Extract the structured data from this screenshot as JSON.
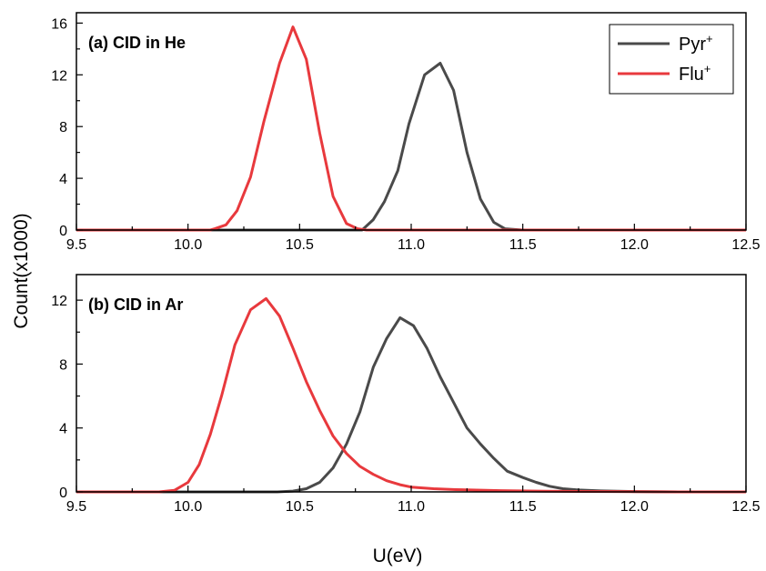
{
  "chart_data": [
    {
      "type": "line",
      "panel_label": "(a) CID in He",
      "xlim": [
        9.5,
        12.5
      ],
      "ylim": [
        0,
        16.8
      ],
      "x_ticks": [
        "9.5",
        "10.0",
        "10.5",
        "11.0",
        "11.5",
        "12.0",
        "12.5"
      ],
      "y_ticks": [
        "0",
        "4",
        "8",
        "12",
        "16"
      ],
      "legend_position": "top-right",
      "series": [
        {
          "name": "Pyr",
          "name_superscript": "+",
          "color": "#4a4a4a",
          "points": [
            [
              9.5,
              0
            ],
            [
              10.7,
              0
            ],
            [
              10.78,
              0
            ],
            [
              10.83,
              0.8
            ],
            [
              10.88,
              2.2
            ],
            [
              10.94,
              4.6
            ],
            [
              10.99,
              8.2
            ],
            [
              11.06,
              12.0
            ],
            [
              11.13,
              12.9
            ],
            [
              11.19,
              10.8
            ],
            [
              11.25,
              6.0
            ],
            [
              11.31,
              2.4
            ],
            [
              11.37,
              0.6
            ],
            [
              11.42,
              0.1
            ],
            [
              11.5,
              0
            ],
            [
              12.5,
              0
            ]
          ]
        },
        {
          "name": "Flu",
          "name_superscript": "+",
          "color": "#e8393d",
          "points": [
            [
              9.5,
              0
            ],
            [
              10.1,
              0
            ],
            [
              10.12,
              0.1
            ],
            [
              10.17,
              0.4
            ],
            [
              10.22,
              1.5
            ],
            [
              10.28,
              4.1
            ],
            [
              10.34,
              8.4
            ],
            [
              10.41,
              12.9
            ],
            [
              10.47,
              15.7
            ],
            [
              10.53,
              13.2
            ],
            [
              10.59,
              7.5
            ],
            [
              10.65,
              2.6
            ],
            [
              10.71,
              0.5
            ],
            [
              10.76,
              0.1
            ],
            [
              10.8,
              0
            ],
            [
              12.5,
              0
            ]
          ]
        }
      ]
    },
    {
      "type": "line",
      "panel_label": "(b) CID in Ar",
      "xlim": [
        9.5,
        12.5
      ],
      "ylim": [
        0,
        13.6
      ],
      "x_ticks": [
        "9.5",
        "10.0",
        "10.5",
        "11.0",
        "11.5",
        "12.0",
        "12.5"
      ],
      "y_ticks": [
        "0",
        "4",
        "8",
        "12"
      ],
      "series": [
        {
          "name": "Pyr",
          "name_superscript": "+",
          "color": "#4a4a4a",
          "points": [
            [
              9.5,
              0
            ],
            [
              10.4,
              0
            ],
            [
              10.47,
              0.05
            ],
            [
              10.53,
              0.2
            ],
            [
              10.59,
              0.6
            ],
            [
              10.65,
              1.5
            ],
            [
              10.71,
              3.0
            ],
            [
              10.77,
              5.0
            ],
            [
              10.83,
              7.8
            ],
            [
              10.89,
              9.6
            ],
            [
              10.95,
              10.9
            ],
            [
              11.01,
              10.4
            ],
            [
              11.07,
              9.0
            ],
            [
              11.13,
              7.2
            ],
            [
              11.19,
              5.6
            ],
            [
              11.25,
              4.0
            ],
            [
              11.31,
              3.0
            ],
            [
              11.37,
              2.1
            ],
            [
              11.43,
              1.3
            ],
            [
              11.5,
              0.9
            ],
            [
              11.56,
              0.6
            ],
            [
              11.62,
              0.35
            ],
            [
              11.68,
              0.2
            ],
            [
              11.75,
              0.12
            ],
            [
              11.85,
              0.06
            ],
            [
              12.0,
              0.02
            ],
            [
              12.2,
              0
            ],
            [
              12.5,
              0
            ]
          ]
        },
        {
          "name": "Flu",
          "name_superscript": "+",
          "color": "#e8393d",
          "points": [
            [
              9.5,
              0
            ],
            [
              9.87,
              0
            ],
            [
              9.94,
              0.1
            ],
            [
              10.0,
              0.6
            ],
            [
              10.05,
              1.7
            ],
            [
              10.1,
              3.6
            ],
            [
              10.15,
              6.0
            ],
            [
              10.21,
              9.2
            ],
            [
              10.28,
              11.4
            ],
            [
              10.35,
              12.1
            ],
            [
              10.41,
              11.0
            ],
            [
              10.47,
              9.0
            ],
            [
              10.53,
              6.9
            ],
            [
              10.59,
              5.1
            ],
            [
              10.65,
              3.5
            ],
            [
              10.71,
              2.4
            ],
            [
              10.77,
              1.6
            ],
            [
              10.83,
              1.1
            ],
            [
              10.89,
              0.7
            ],
            [
              10.95,
              0.45
            ],
            [
              11.0,
              0.3
            ],
            [
              11.1,
              0.2
            ],
            [
              11.2,
              0.14
            ],
            [
              11.4,
              0.08
            ],
            [
              11.6,
              0.04
            ],
            [
              11.9,
              0.02
            ],
            [
              12.2,
              0
            ],
            [
              12.5,
              0
            ]
          ]
        }
      ]
    }
  ],
  "ylabel": "Count(x1000)",
  "xlabel": "U(eV)"
}
